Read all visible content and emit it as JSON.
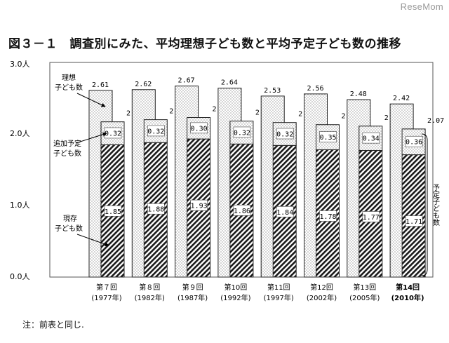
{
  "watermark": "ReseMom",
  "title": "図３－１　調査別にみた、平均理想子ども数と平均予定子ども数の推移",
  "note": "注：前表と同じ.",
  "labels": {
    "ideal_line1": "理想",
    "ideal_line2": "子ども数",
    "additional_line1": "追加予定",
    "additional_line2": "子ども数",
    "existing_line1": "現存",
    "existing_line2": "子ども数",
    "planned": "予定子ども数"
  },
  "chart_data": {
    "type": "bar",
    "ylim": [
      0,
      3
    ],
    "yticks": [
      "0.0人",
      "1.0人",
      "2.0人",
      "3.0人"
    ],
    "categories": [
      {
        "round": "第７回",
        "year": "(1977年)",
        "bold": false
      },
      {
        "round": "第８回",
        "year": "(1982年)",
        "bold": false
      },
      {
        "round": "第９回",
        "year": "(1987年)",
        "bold": false
      },
      {
        "round": "第10回",
        "year": "(1992年)",
        "bold": false
      },
      {
        "round": "第11回",
        "year": "(1997年)",
        "bold": false
      },
      {
        "round": "第12回",
        "year": "(2002年)",
        "bold": false
      },
      {
        "round": "第13回",
        "year": "(2005年)",
        "bold": false
      },
      {
        "round": "第14回",
        "year": "(2010年)",
        "bold": true
      }
    ],
    "series": [
      {
        "name": "理想子ども数",
        "values": [
          2.61,
          2.62,
          2.67,
          2.64,
          2.53,
          2.56,
          2.48,
          2.42
        ],
        "labels": [
          "2.61",
          "2.62",
          "2.67",
          "2.64",
          "2.53",
          "2.56",
          "2.48",
          "2.42"
        ]
      },
      {
        "name": "予定子ども数",
        "values": [
          2.17,
          2.2,
          2.23,
          2.18,
          2.16,
          2.13,
          2.11,
          2.07
        ],
        "labels": [
          "2.17",
          "2.20",
          "2.23",
          "2.18",
          "2.16",
          "2.13",
          "2.11",
          "2.07"
        ]
      },
      {
        "name": "追加予定子ども数",
        "values": [
          0.32,
          0.32,
          0.3,
          0.32,
          0.32,
          0.35,
          0.34,
          0.36
        ],
        "labels": [
          "0.32",
          "0.32",
          "0.30",
          "0.32",
          "0.32",
          "0.35",
          "0.34",
          "0.36"
        ]
      },
      {
        "name": "現存子ども数",
        "values": [
          1.85,
          1.88,
          1.93,
          1.86,
          1.84,
          1.78,
          1.77,
          1.71
        ],
        "labels": [
          "1.85",
          "1.88",
          "1.93",
          "1.86",
          "1.84",
          "1.78",
          "1.77",
          "1.71"
        ]
      }
    ]
  }
}
